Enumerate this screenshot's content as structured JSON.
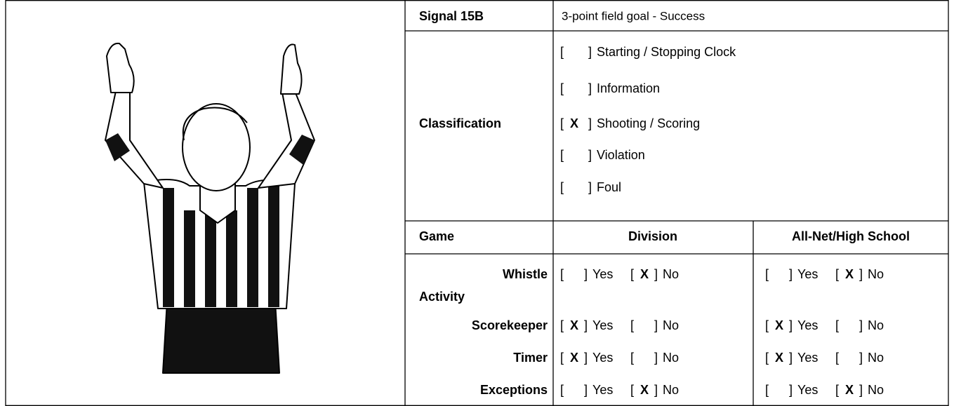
{
  "signal": {
    "label": "Signal 15B",
    "description": "3-point field goal - Success"
  },
  "box": [
    "[",
    "]"
  ],
  "check_mark": "X",
  "classification": {
    "label": "Classification",
    "options": [
      {
        "label": "Starting / Stopping Clock",
        "checked": false
      },
      {
        "label": "Information",
        "checked": false
      },
      {
        "label": "Shooting / Scoring",
        "checked": true
      },
      {
        "label": "Violation",
        "checked": false
      },
      {
        "label": "Foul",
        "checked": false
      }
    ]
  },
  "game": {
    "header": [
      "Game",
      "Division",
      "All-Net/High School"
    ],
    "choices": [
      "Yes",
      "No"
    ],
    "rows": [
      {
        "label": "Whistle",
        "division": "No",
        "all_net": "No"
      },
      {
        "label": "Activity"
      },
      {
        "label": "Scorekeeper",
        "division": "Yes",
        "all_net": "Yes"
      },
      {
        "label": "Timer",
        "division": "Yes",
        "all_net": "Yes"
      },
      {
        "label": "Exceptions",
        "division": "No",
        "all_net": "No"
      }
    ]
  }
}
